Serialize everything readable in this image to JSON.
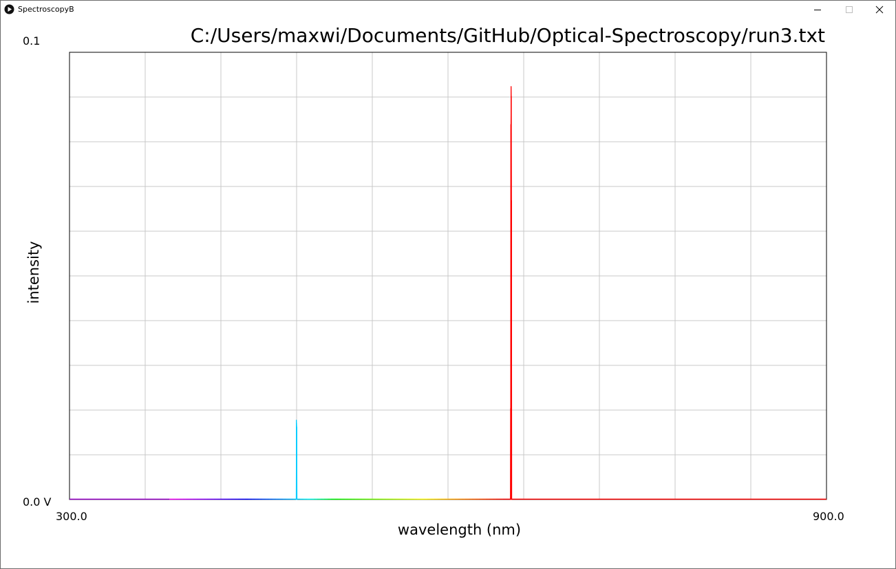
{
  "window": {
    "title": "SpectroscopyB",
    "icon": "play-icon",
    "controls": [
      "minimize-icon",
      "maximize-icon",
      "close-icon"
    ]
  },
  "chart_data": {
    "type": "line",
    "title": "C:/Users/maxwi/Documents/GitHub/Optical-Spectroscopy/run3.txt",
    "xlabel": "wavelength (nm)",
    "ylabel": "intensity",
    "xlim": [
      300.0,
      900.0
    ],
    "ylim": [
      0.0,
      0.1
    ],
    "x_tick_labels": [
      "300.0",
      "900.0"
    ],
    "y_tick_labels": [
      "0.0 V",
      "0.1"
    ],
    "x_gridlines": 10,
    "y_gridlines": 10,
    "grid": true,
    "line_color_mode": "wavelength-spectrum",
    "series": [
      {
        "x": [
          300,
          479.6,
          479.8,
          480.0,
          480.2,
          480.4,
          480.6,
          649.4,
          649.6,
          649.8,
          650.0,
          650.2,
          650.4,
          650.6,
          650.8,
          651.0,
          900
        ],
        "y": [
          0.0,
          0.0,
          0.0178,
          0.0171,
          0.0162,
          0.0,
          0.0,
          0.0,
          0.0204,
          0.0839,
          0.0924,
          0.0902,
          0.0669,
          0.0,
          0.0,
          0.0,
          0.0
        ]
      }
    ]
  }
}
